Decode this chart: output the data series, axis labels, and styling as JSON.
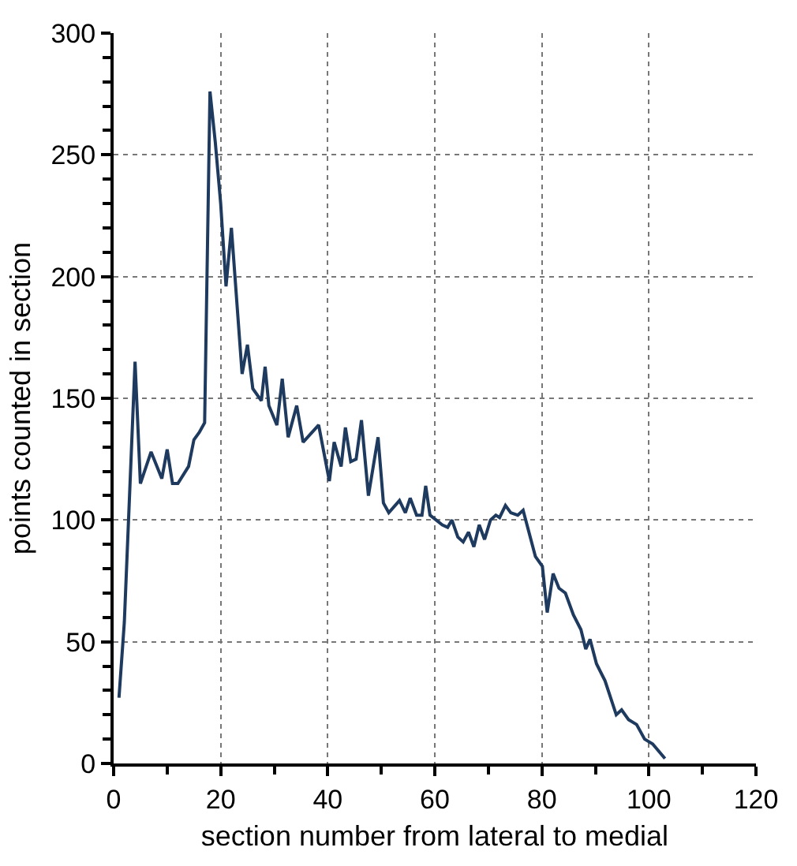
{
  "chart_data": {
    "type": "line",
    "xlabel": "section number from lateral to medial",
    "ylabel": "points counted in section",
    "x": [
      1,
      2,
      4,
      5,
      7,
      9,
      10,
      11,
      12,
      14,
      15,
      16,
      17,
      18,
      19,
      20,
      21,
      22,
      24,
      25,
      26,
      27.6,
      28.3,
      29,
      30.5,
      31.5,
      32.6,
      34.2,
      35.4,
      38.3,
      40.3,
      41.2,
      42.5,
      43.3,
      44.3,
      45.3,
      46.3,
      47.6,
      49.4,
      50.4,
      51.4,
      53.4,
      54.5,
      55.4,
      56.6,
      57.6,
      58.3,
      59.1,
      61.4,
      62.4,
      63.2,
      64.3,
      65.3,
      66.3,
      67.3,
      68.3,
      69.3,
      70.4,
      71.4,
      72.1,
      73.2,
      74.2,
      75.5,
      76.5,
      78.8,
      80.1,
      81,
      82.1,
      83.2,
      84.4,
      85.9,
      87.3,
      88.2,
      89,
      90.2,
      91.8,
      93.9,
      94.9,
      96.2,
      97.7,
      99.2,
      100.7,
      103
    ],
    "values": [
      27,
      58,
      165,
      115,
      128,
      117,
      129,
      115,
      115,
      122,
      133,
      136,
      140,
      276,
      255,
      230,
      196,
      220,
      160,
      172,
      154,
      149,
      163,
      147,
      139,
      158,
      134,
      147,
      132,
      139,
      116,
      132,
      122,
      138,
      124,
      125,
      141,
      110,
      134,
      107,
      103,
      108,
      103,
      109,
      102,
      102,
      114,
      102,
      98,
      97,
      100,
      93,
      91,
      95,
      89,
      98,
      92,
      100,
      102,
      101,
      106,
      103,
      102,
      104,
      85,
      81,
      62,
      78,
      72,
      70,
      61,
      55,
      47,
      51,
      41,
      34,
      20,
      22,
      18,
      16,
      10,
      8,
      2
    ],
    "color": "#1f3a5f",
    "xlim": [
      0,
      120
    ],
    "xticks": [
      0,
      20,
      40,
      60,
      80,
      100,
      120
    ],
    "ylim": [
      0,
      300
    ],
    "yticks": [
      0,
      50,
      100,
      150,
      200,
      250,
      300
    ],
    "grid": true,
    "legend": false,
    "marker": "none",
    "line_style": "solid"
  }
}
